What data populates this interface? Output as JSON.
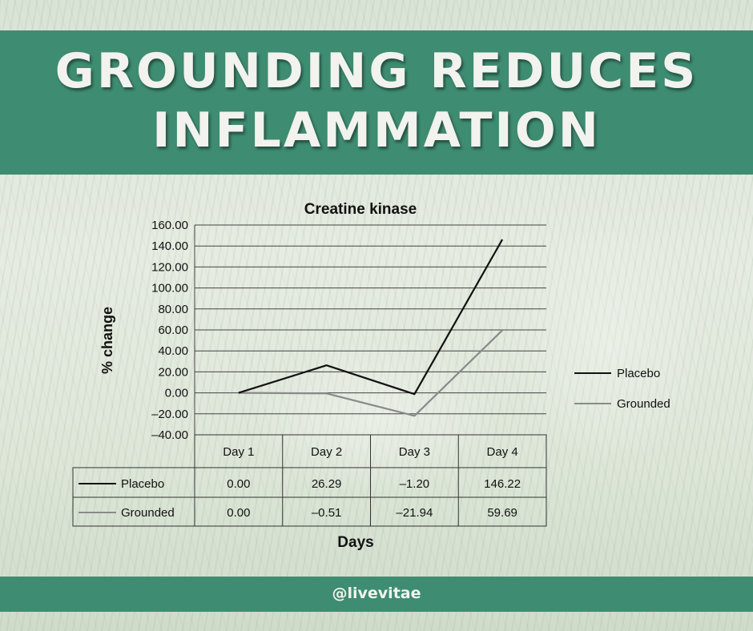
{
  "headline": {
    "line1": "GROUNDING REDUCES",
    "line2": "INFLAMMATION"
  },
  "footer": {
    "handle": "@livevitae"
  },
  "chart_data": {
    "type": "line",
    "title": "Creatine kinase",
    "xlabel": "Days",
    "ylabel": "% change",
    "categories": [
      "Day 1",
      "Day 2",
      "Day 3",
      "Day 4"
    ],
    "ylim": [
      -40,
      160
    ],
    "yticks": [
      "160.00",
      "140.00",
      "120.00",
      "100.00",
      "80.00",
      "60.00",
      "40.00",
      "20.00",
      "0.00",
      "–20.00",
      "–40.00"
    ],
    "grid": true,
    "legend_position": "right",
    "series": [
      {
        "name": "Placebo",
        "color": "#111111",
        "values": [
          0.0,
          26.29,
          -1.2,
          146.22
        ],
        "labels": [
          "0.00",
          "26.29",
          "–1.20",
          "146.22"
        ]
      },
      {
        "name": "Grounded",
        "color": "#8a8a8a",
        "values": [
          0.0,
          -0.51,
          -21.94,
          59.69
        ],
        "labels": [
          "0.00",
          "–0.51",
          "–21.94",
          "59.69"
        ]
      }
    ]
  }
}
